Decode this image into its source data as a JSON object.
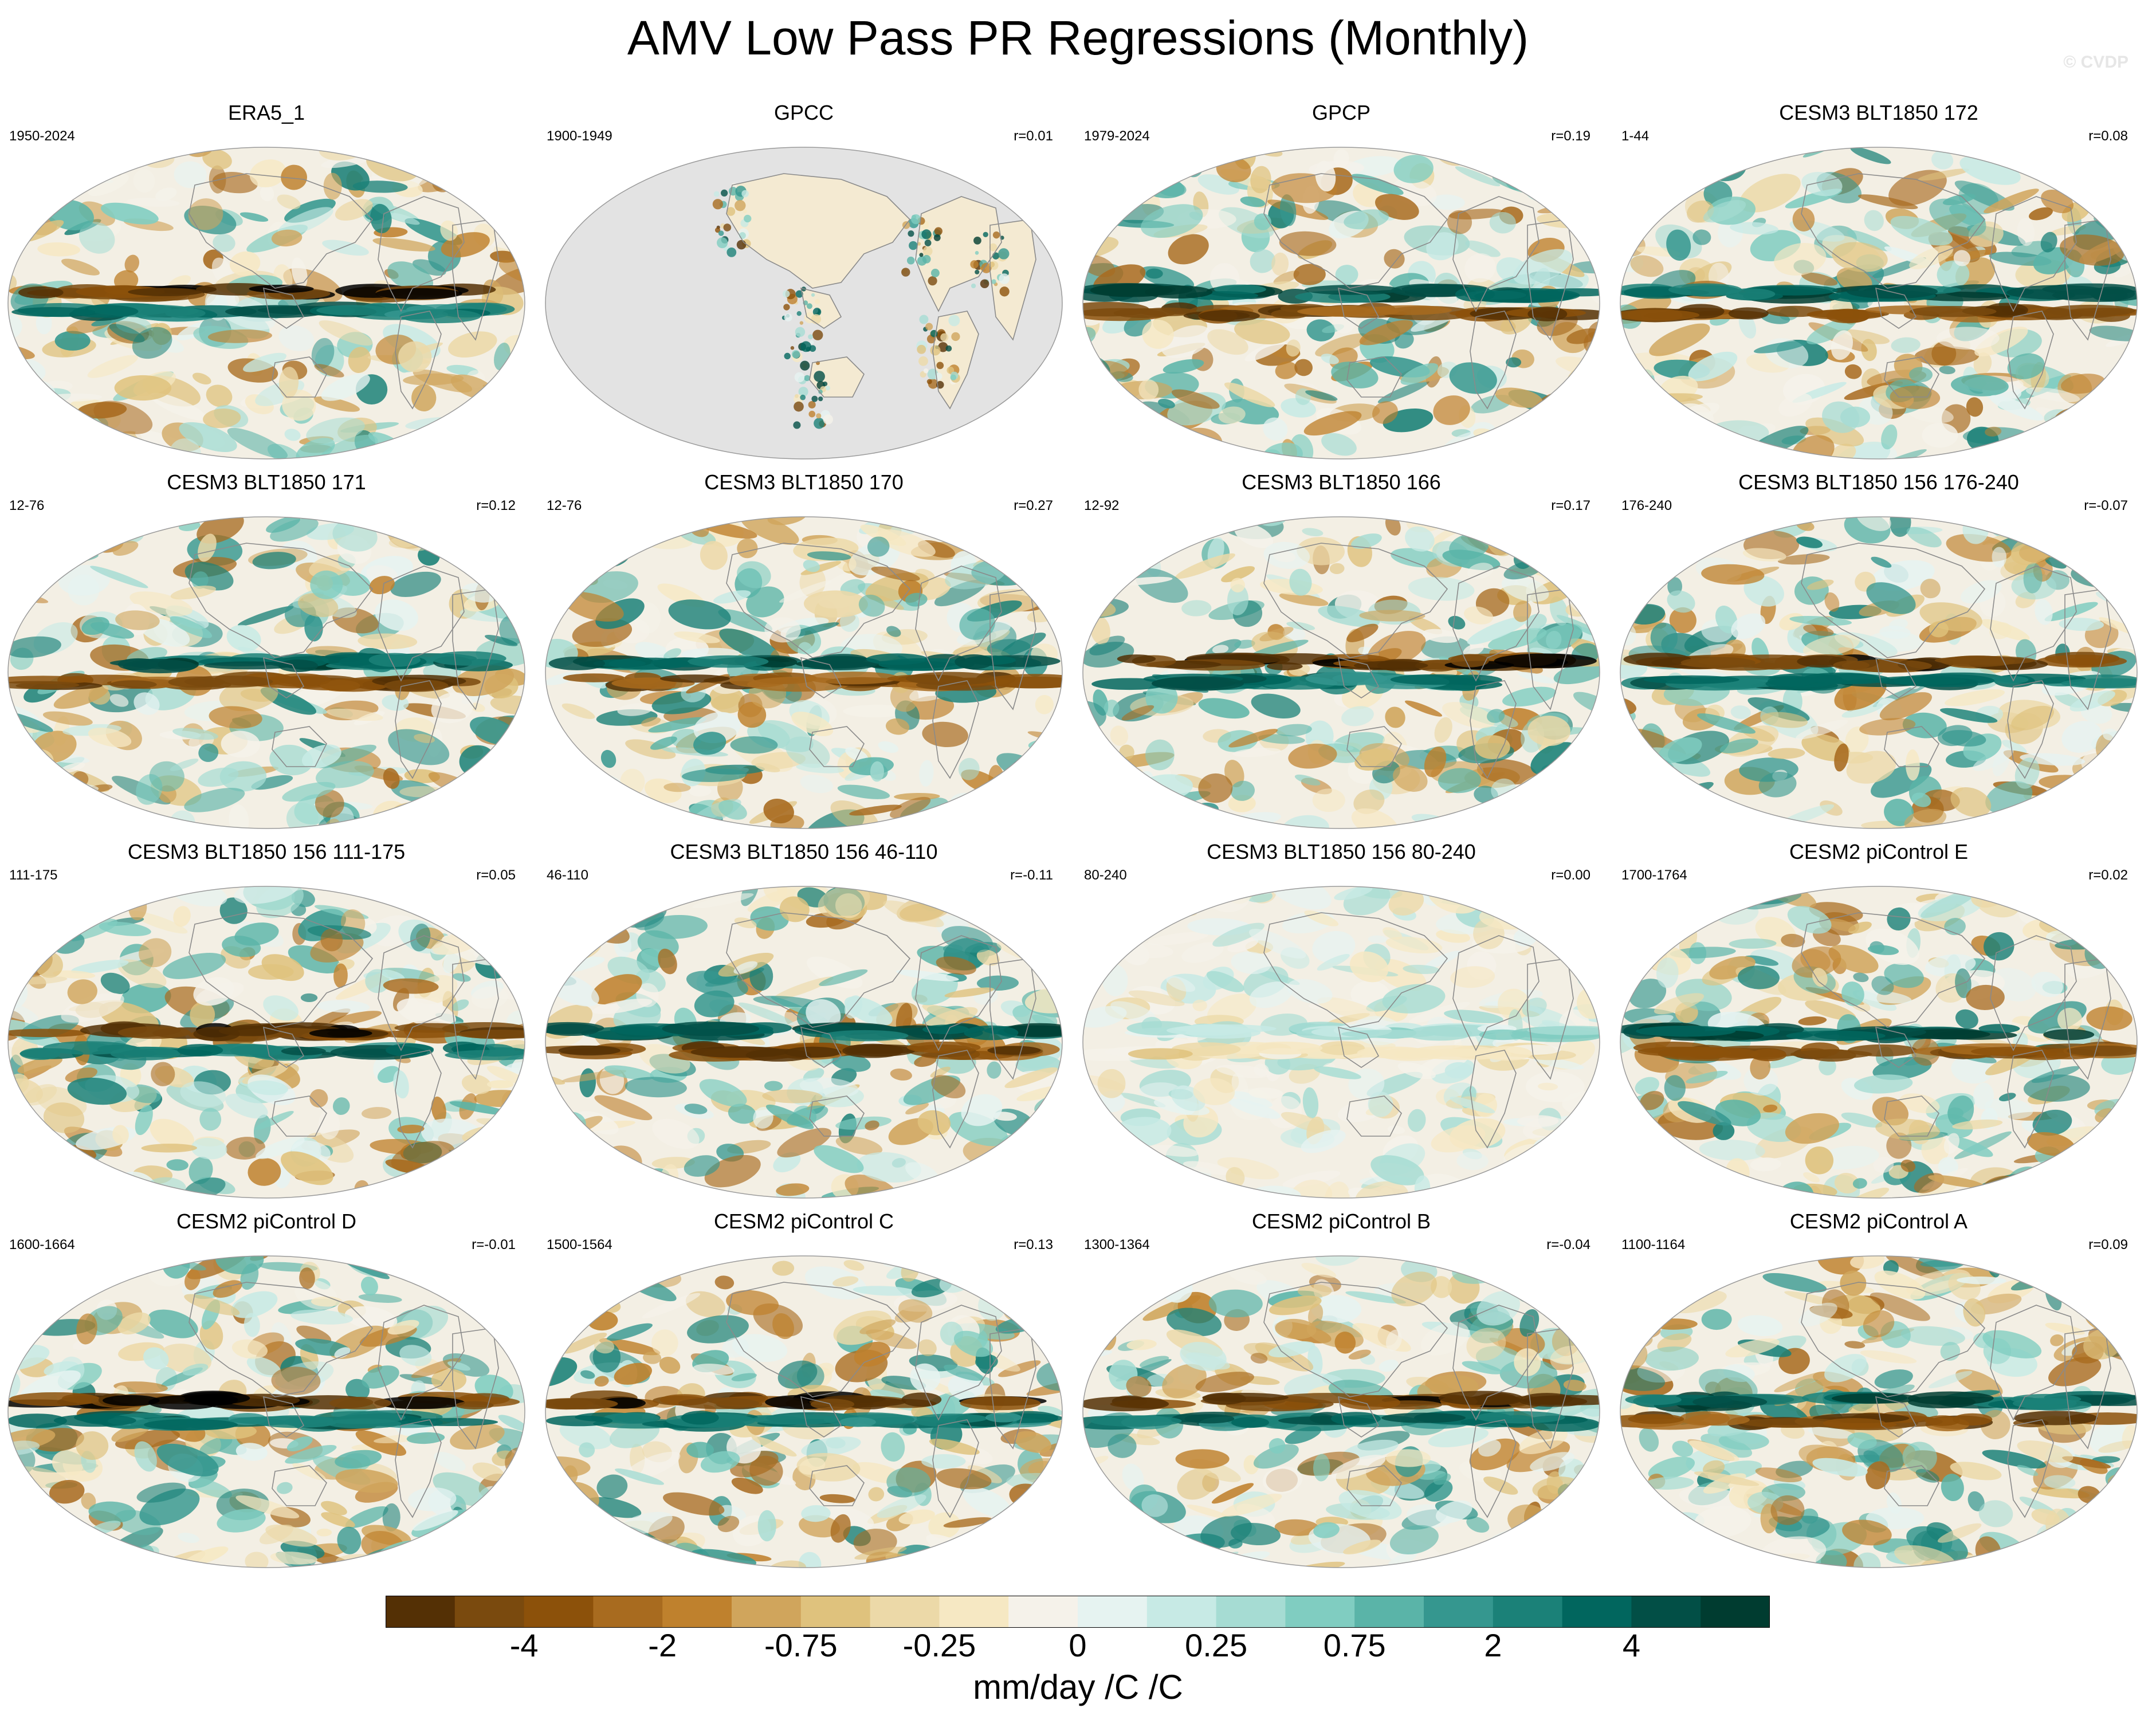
{
  "title": "AMV Low Pass PR Regressions (Monthly)",
  "watermark": "© CVDP",
  "panels": [
    {
      "name": "ERA5_1",
      "period": "1950-2024",
      "r": "",
      "map": "full"
    },
    {
      "name": "GPCC",
      "period": "1900-1949",
      "r": "r=0.01",
      "map": "land-only"
    },
    {
      "name": "GPCP",
      "period": "1979-2024",
      "r": "r=0.19",
      "map": "full"
    },
    {
      "name": "CESM3 BLT1850 172",
      "period": "1-44",
      "r": "r=0.08",
      "map": "full"
    },
    {
      "name": "CESM3 BLT1850 171",
      "period": "12-76",
      "r": "r=0.12",
      "map": "full"
    },
    {
      "name": "CESM3 BLT1850 170",
      "period": "12-76",
      "r": "r=0.27",
      "map": "full"
    },
    {
      "name": "CESM3 BLT1850 166",
      "period": "12-92",
      "r": "r=0.17",
      "map": "full"
    },
    {
      "name": "CESM3 BLT1850 156 176-240",
      "period": "176-240",
      "r": "r=-0.07",
      "map": "full"
    },
    {
      "name": "CESM3 BLT1850 156 111-175",
      "period": "111-175",
      "r": "r=0.05",
      "map": "full"
    },
    {
      "name": "CESM3 BLT1850 156 46-110",
      "period": "46-110",
      "r": "r=-0.11",
      "map": "full"
    },
    {
      "name": "CESM3 BLT1850 156 80-240",
      "period": "80-240",
      "r": "r=0.00",
      "map": "weak"
    },
    {
      "name": "CESM2 piControl E",
      "period": "1700-1764",
      "r": "r=0.02",
      "map": "full"
    },
    {
      "name": "CESM2 piControl D",
      "period": "1600-1664",
      "r": "r=-0.01",
      "map": "full"
    },
    {
      "name": "CESM2 piControl C",
      "period": "1500-1564",
      "r": "r=0.13",
      "map": "full"
    },
    {
      "name": "CESM2 piControl B",
      "period": "1300-1364",
      "r": "r=-0.04",
      "map": "full"
    },
    {
      "name": "CESM2 piControl A",
      "period": "1100-1164",
      "r": "r=0.09",
      "map": "full"
    }
  ],
  "colorbar": {
    "units": "mm/day /C /C",
    "colors": [
      "#543005",
      "#7a4a0e",
      "#8c510a",
      "#a86b1f",
      "#bf812d",
      "#d0a55c",
      "#dfc27d",
      "#ecd9a8",
      "#f6e8c3",
      "#f5f2ea",
      "#e6f3f1",
      "#c7eae5",
      "#a6dcd3",
      "#80cdc1",
      "#5ab4a8",
      "#35978f",
      "#1b8178",
      "#01665e",
      "#024f46",
      "#003c30"
    ],
    "tick_labels": [
      "-4",
      "-2",
      "-0.75",
      "-0.25",
      "0",
      "0.25",
      "0.75",
      "2",
      "4"
    ],
    "tick_boundary_index": [
      2,
      4,
      6,
      8,
      10,
      12,
      14,
      16,
      18
    ]
  }
}
